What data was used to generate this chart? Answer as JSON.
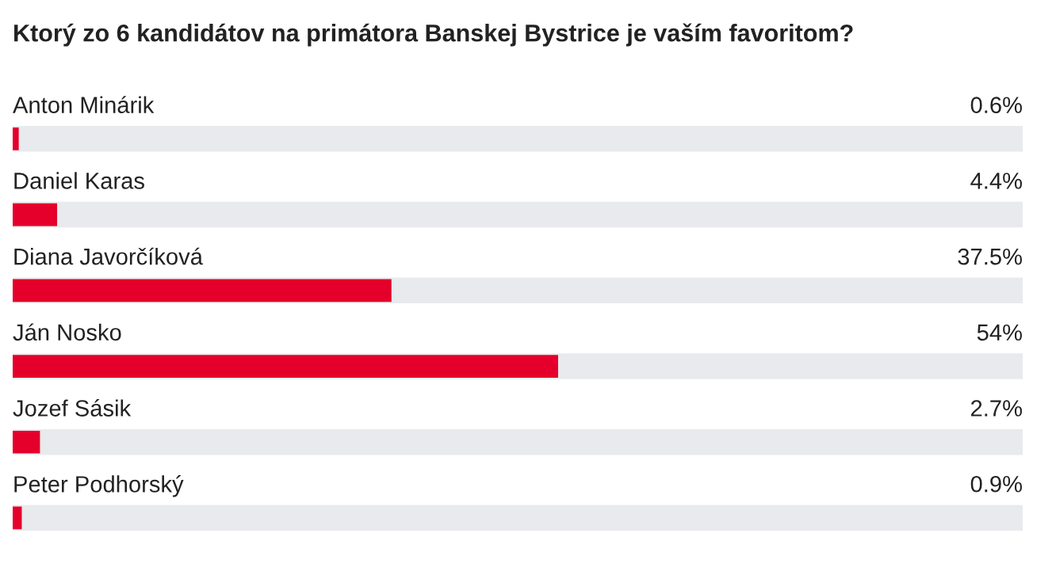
{
  "chart_data": {
    "type": "bar",
    "orientation": "horizontal",
    "title": "Ktorý zo 6 kandidátov na primátora Banskej Bystrice je vaším favoritom?",
    "categories": [
      "Anton Minárik",
      "Daniel Karas",
      "Diana Javorčíková",
      "Ján Nosko",
      "Jozef Sásik",
      "Peter Podhorský"
    ],
    "values": [
      0.6,
      4.4,
      37.5,
      54,
      2.7,
      0.9
    ],
    "value_labels": [
      "0.6%",
      "4.4%",
      "37.5%",
      "54%",
      "2.7%",
      "0.9%"
    ],
    "color": "#e4002b",
    "xlim": [
      0,
      100
    ]
  }
}
